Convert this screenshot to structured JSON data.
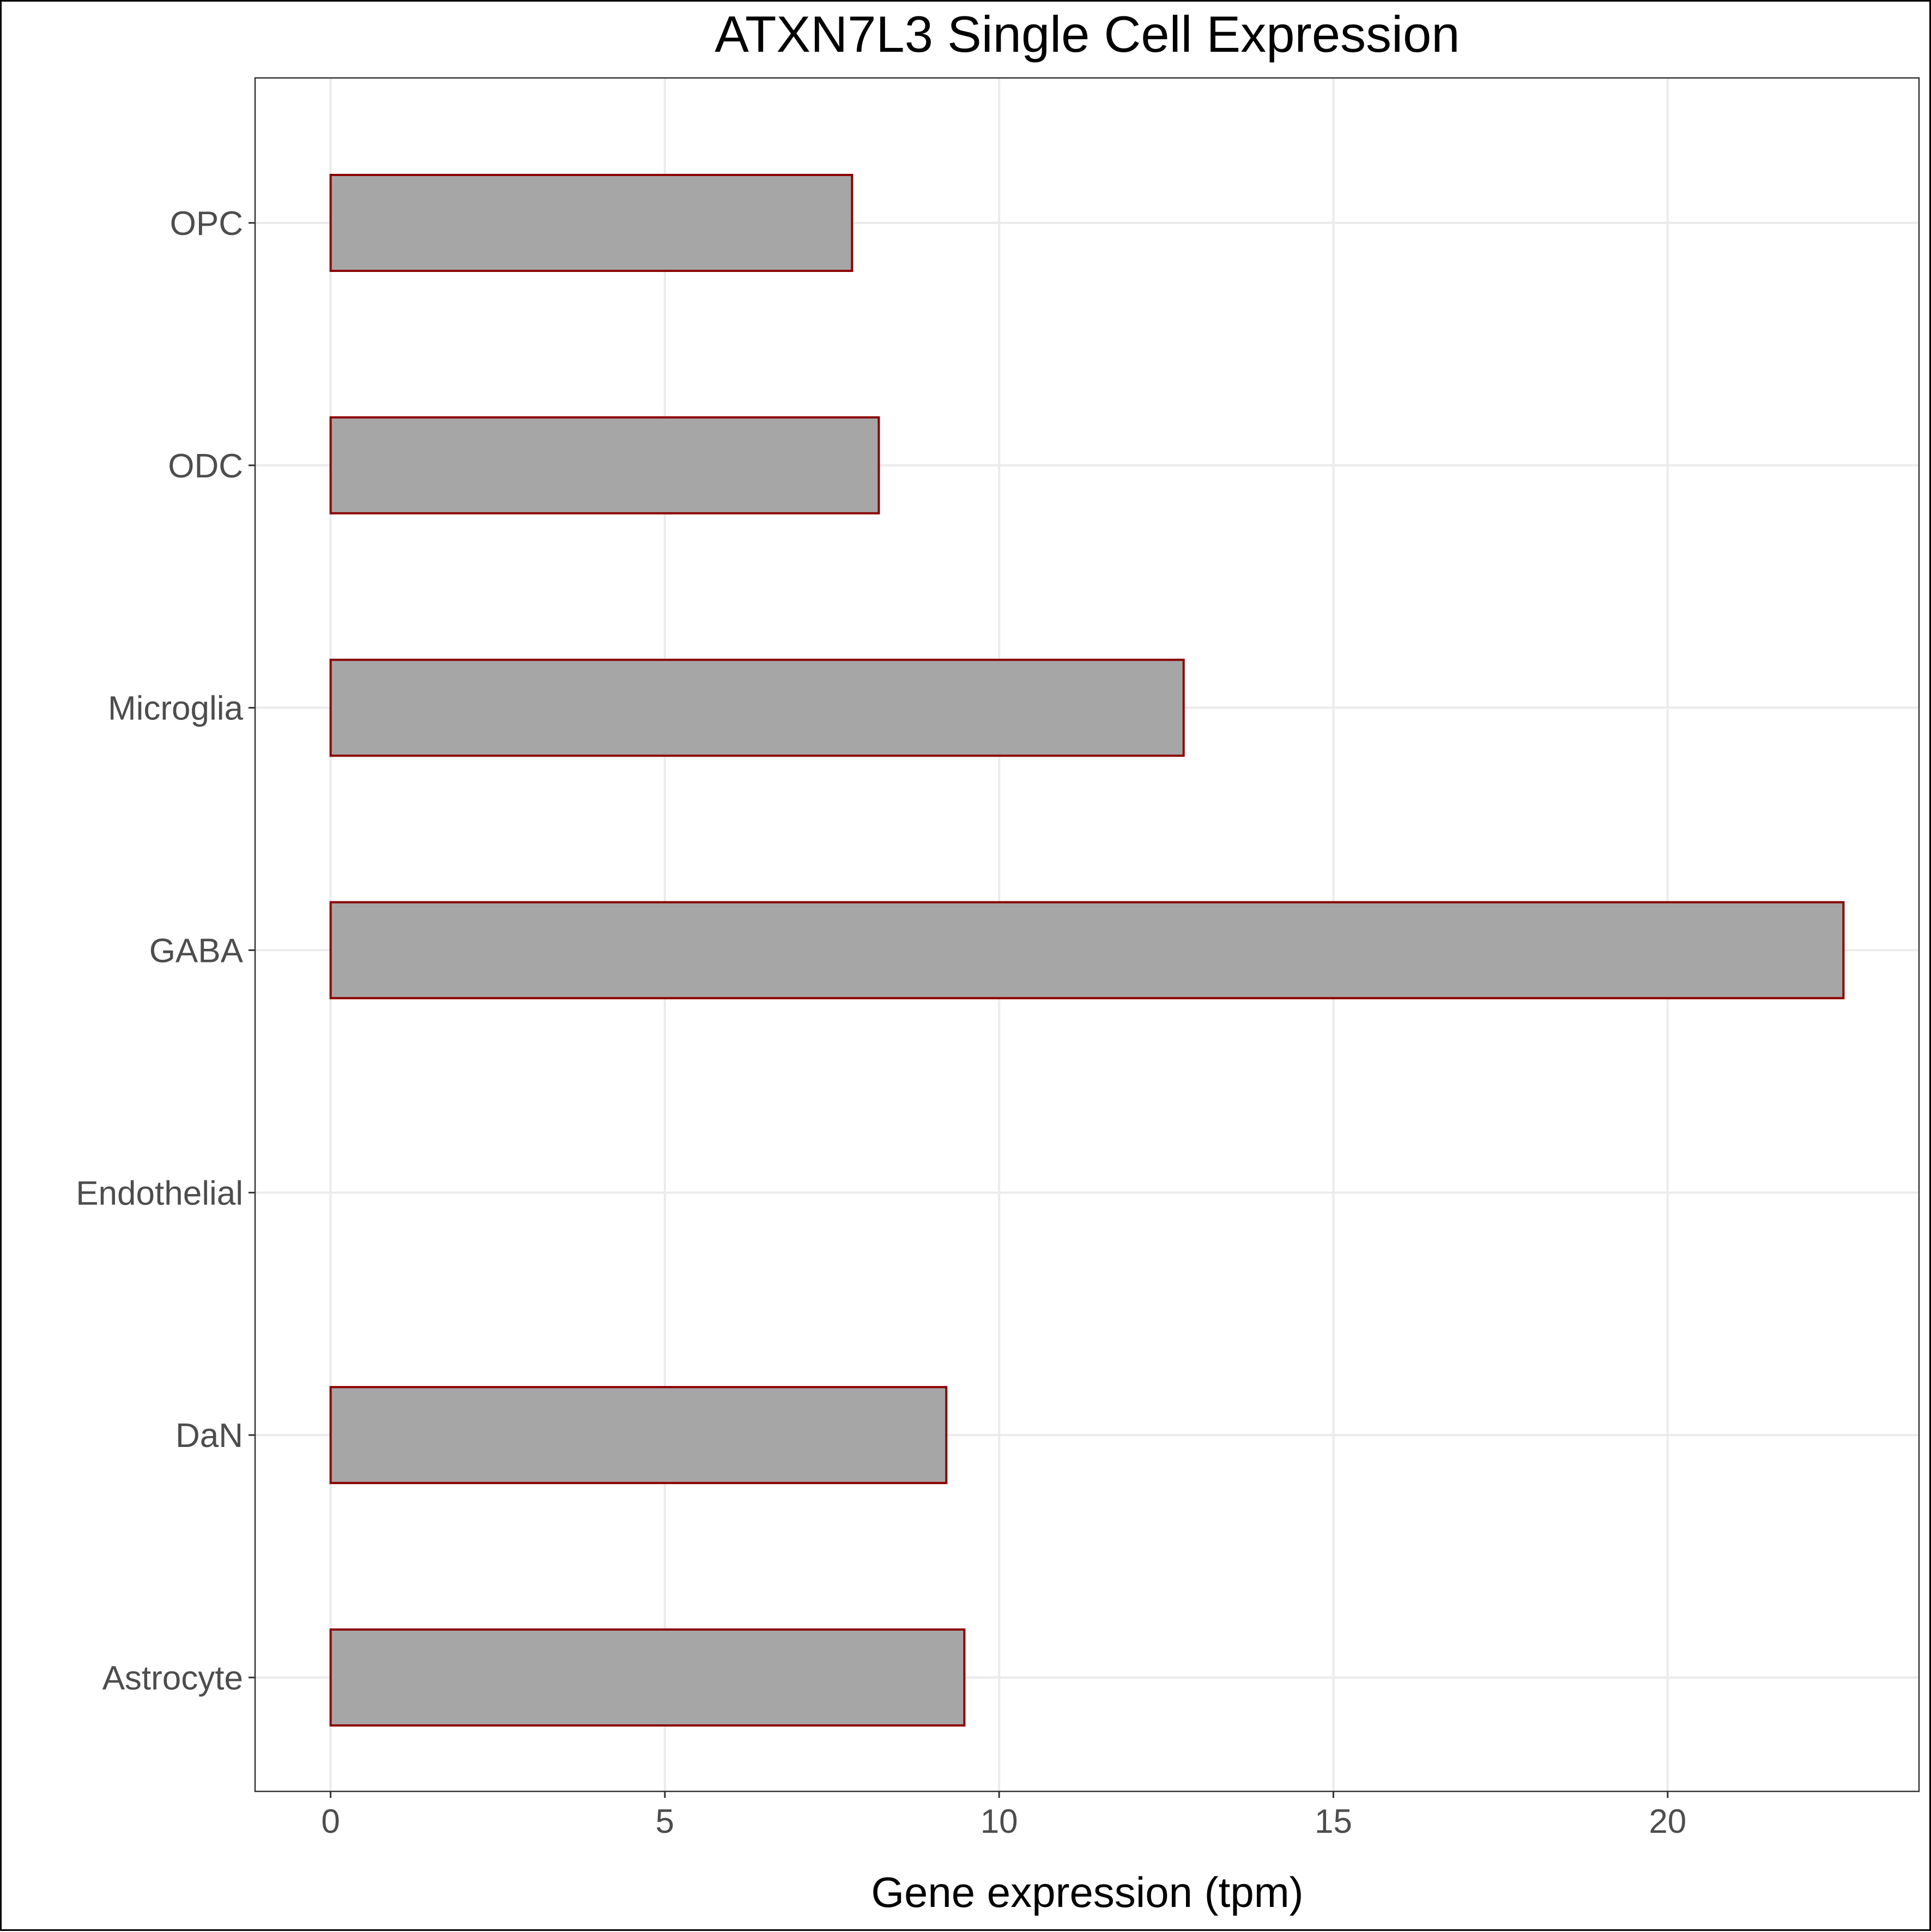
{
  "chart_data": {
    "type": "bar",
    "orientation": "horizontal",
    "title": "ATXN7L3 Single Cell Expression",
    "xlabel": "Gene expression (tpm)",
    "ylabel": "",
    "categories": [
      "OPC",
      "ODC",
      "Microglia",
      "GABA",
      "Endothelial",
      "DaN",
      "Astrocyte"
    ],
    "values": [
      7.8,
      8.2,
      12.76,
      22.63,
      0.0,
      9.21,
      9.48
    ],
    "xlim": [
      -1.13,
      23.76
    ],
    "xticks": [
      0,
      5,
      10,
      15,
      20
    ],
    "grid": true,
    "legend": "none",
    "colors": {
      "bar_fill": "#a6a6a6",
      "bar_outline": "#8b0000",
      "grid": "#ebebeb",
      "panel_border": "#333333",
      "tick_text": "#4d4d4d",
      "tick_mark": "#333333"
    }
  }
}
